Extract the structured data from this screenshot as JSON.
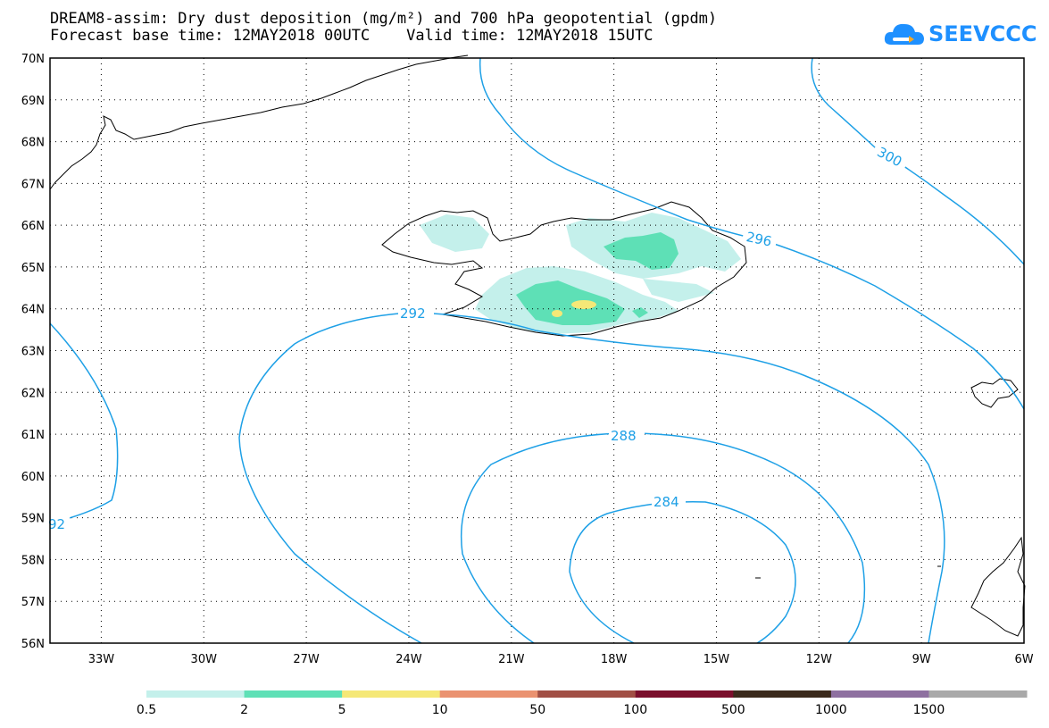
{
  "title": {
    "line1": "DREAM8-assim: Dry dust deposition (mg/m²) and 700 hPa geopotential (gpdm)",
    "line2": "Forecast base time: 12MAY2018 00UTC    Valid time: 12MAY2018 15UTC"
  },
  "logo": {
    "text": "SEEVCCC",
    "icon": "cloud-icon"
  },
  "map": {
    "lon_range": [
      -34.5,
      -6
    ],
    "lat_range": [
      56,
      70
    ],
    "grid": true,
    "lon_labels": [
      "33W",
      "30W",
      "27W",
      "24W",
      "21W",
      "18W",
      "15W",
      "12W",
      "9W",
      "6W"
    ],
    "lat_labels": [
      "70N",
      "69N",
      "68N",
      "67N",
      "66N",
      "65N",
      "64N",
      "63N",
      "62N",
      "61N",
      "60N",
      "59N",
      "58N",
      "57N",
      "56N"
    ]
  },
  "contours": {
    "color": "#1ea0e6",
    "labels": [
      "300",
      "296",
      "292",
      "288",
      "284",
      "92"
    ]
  },
  "colorbar": {
    "colors": [
      "#c4f0eb",
      "#5ee0b6",
      "#f5e877",
      "#ea9270",
      "#a14f45",
      "#7b0f2c",
      "#3b2a1c",
      "#8e70a0",
      "#a9a9a9"
    ],
    "labels": [
      "0.5",
      "2",
      "5",
      "10",
      "50",
      "100",
      "500",
      "1000",
      "1500"
    ]
  }
}
